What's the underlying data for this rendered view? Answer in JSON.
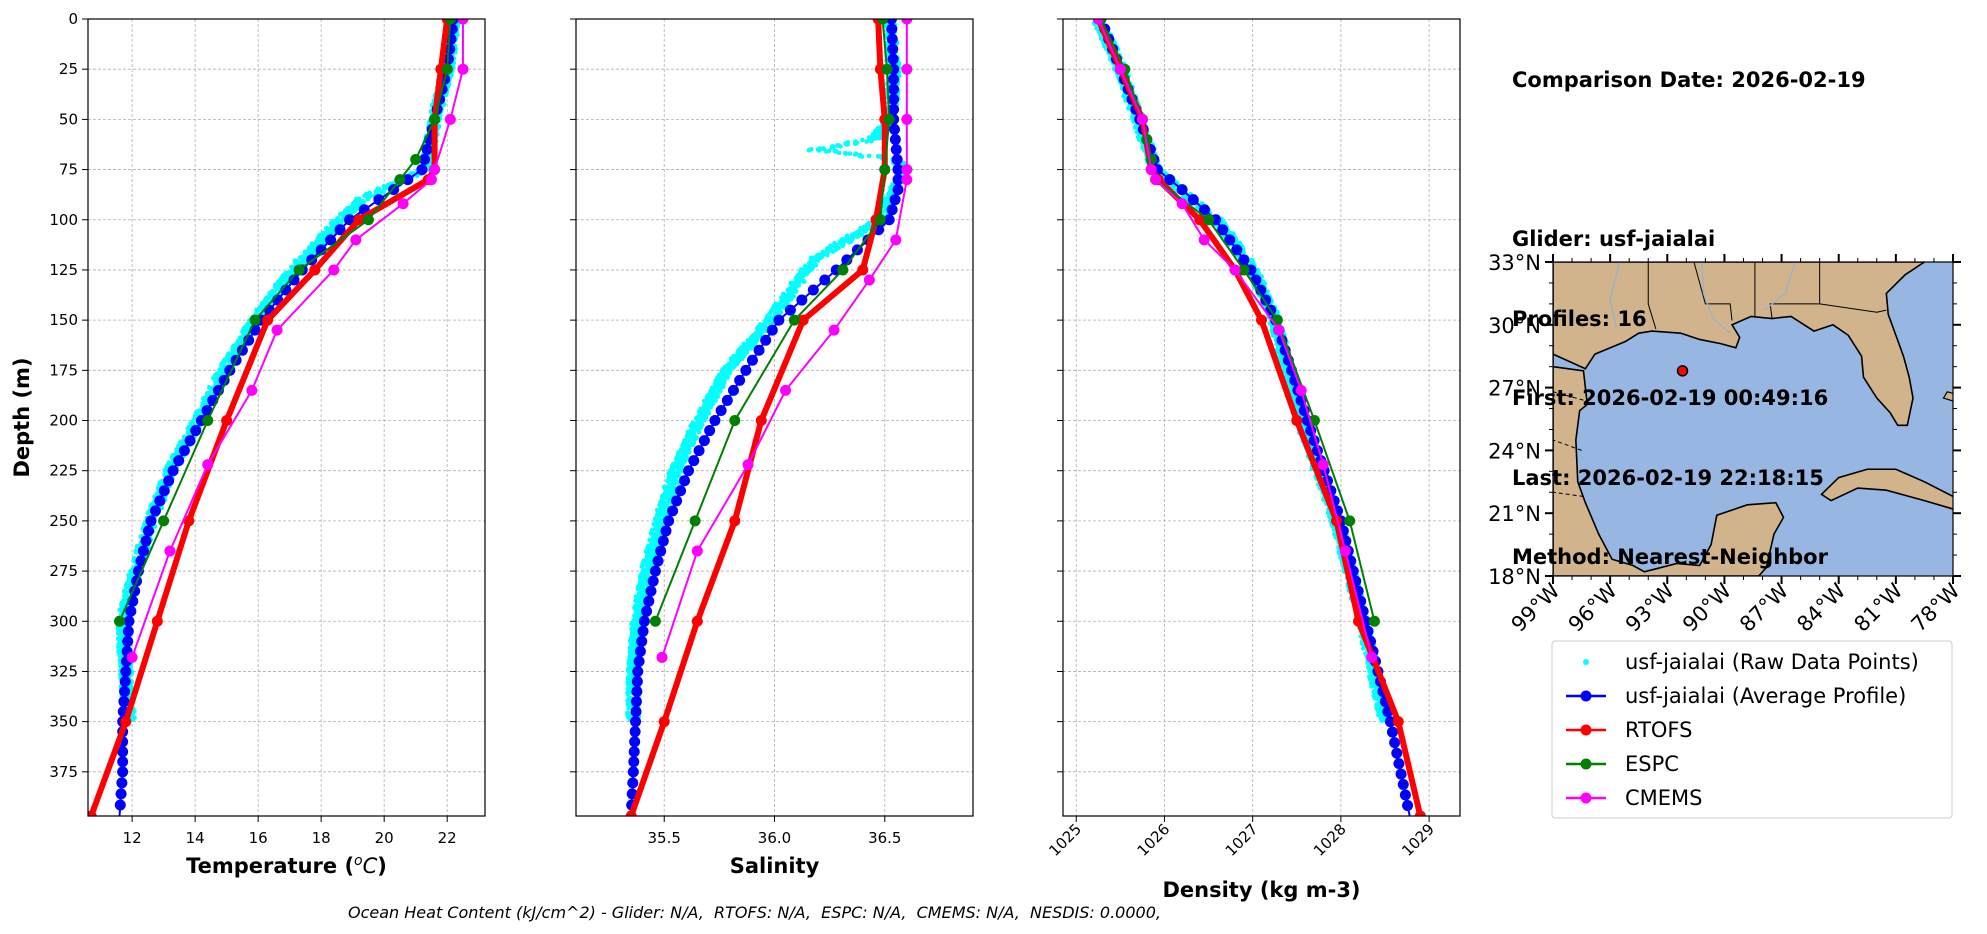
{
  "info": {
    "comparison_date": "Comparison Date: 2026-02-19",
    "glider": "Glider: usf-jaialai",
    "profiles": "Profiles: 16",
    "first": "First: 2026-02-19 00:49:16",
    "last": "Last: 2026-02-19 22:18:15",
    "method": "Method: Nearest-Neighbor"
  },
  "footer": "Ocean Heat Content (kJ/cm^2) - Glider: N/A,  RTOFS: N/A,  ESPC: N/A,  CMEMS: N/A,  NESDIS: 0.0000,",
  "legend": [
    {
      "label": "usf-jaialai (Raw Data Points)",
      "color": "#00ffff",
      "kind": "dot"
    },
    {
      "label": "usf-jaialai (Average Profile)",
      "color": "#0000ff",
      "kind": "line"
    },
    {
      "label": "RTOFS",
      "color": "#ff0000",
      "kind": "line"
    },
    {
      "label": "ESPC",
      "color": "#008000",
      "kind": "line"
    },
    {
      "label": "CMEMS",
      "color": "#ff00ff",
      "kind": "line"
    }
  ],
  "map": {
    "lat_ticks": [
      "33°N",
      "30°N",
      "27°N",
      "24°N",
      "21°N",
      "18°N"
    ],
    "lon_ticks": [
      "99°W",
      "96°W",
      "93°W",
      "90°W",
      "87°W",
      "84°W",
      "81°W",
      "78°W"
    ],
    "extent": {
      "lon": [
        -99,
        -78
      ],
      "lat": [
        18,
        33
      ]
    },
    "glider_location": {
      "lon": -92.2,
      "lat": 27.8
    },
    "land_color": "#d2b48c",
    "ocean_color": "#97b6e1"
  },
  "chart_data": [
    {
      "type": "line",
      "xlabel": "Temperature ($^o$C)",
      "ylabel": "Depth (m)",
      "xlim": [
        10.6,
        23.2
      ],
      "ylim": [
        397,
        0
      ],
      "xticks": [
        12,
        14,
        16,
        18,
        20,
        22
      ],
      "yticks": [
        0,
        25,
        50,
        75,
        100,
        125,
        150,
        175,
        200,
        225,
        250,
        275,
        300,
        325,
        350,
        375
      ],
      "grid": true,
      "series": [
        {
          "name": "usf-jaialai (Raw Data Points)",
          "color": "#00ffff",
          "depth": [
            0,
            25,
            50,
            75,
            90,
            100,
            125,
            150,
            175,
            200,
            225,
            250,
            275,
            300,
            325,
            350
          ],
          "x": [
            22.2,
            22.0,
            21.6,
            21.3,
            19.3,
            18.6,
            17.1,
            15.9,
            14.9,
            14.1,
            13.2,
            12.6,
            12.1,
            11.7,
            11.8,
            11.9
          ]
        },
        {
          "name": "usf-jaialai (Average Profile)",
          "color": "#0000ff",
          "depth": [
            0,
            25,
            50,
            75,
            85,
            100,
            125,
            150,
            175,
            200,
            225,
            250,
            275,
            300,
            325,
            350,
            375,
            397
          ],
          "x": [
            22.2,
            22.0,
            21.6,
            21.2,
            20.3,
            18.9,
            17.4,
            16.1,
            15.1,
            14.2,
            13.3,
            12.6,
            12.2,
            11.9,
            11.8,
            11.7,
            11.7,
            11.6
          ]
        },
        {
          "name": "RTOFS",
          "color": "#ff0000",
          "depth": [
            0,
            25,
            50,
            75,
            80,
            100,
            125,
            150,
            200,
            250,
            300,
            350,
            397
          ],
          "x": [
            22.0,
            21.8,
            21.6,
            21.6,
            21.4,
            19.2,
            17.8,
            16.3,
            15.0,
            13.8,
            12.8,
            11.8,
            10.7
          ]
        },
        {
          "name": "ESPC",
          "color": "#008000",
          "depth": [
            0,
            25,
            50,
            70,
            80,
            100,
            125,
            150,
            200,
            250,
            300
          ],
          "x": [
            22.1,
            22.0,
            21.6,
            21.0,
            20.5,
            19.5,
            17.3,
            15.9,
            14.4,
            13.0,
            11.6
          ]
        },
        {
          "name": "CMEMS",
          "color": "#ff00ff",
          "depth": [
            0,
            25,
            50,
            75,
            80,
            92,
            110,
            125,
            155,
            185,
            222,
            265,
            318
          ],
          "x": [
            22.5,
            22.5,
            22.1,
            21.6,
            21.5,
            20.6,
            19.1,
            18.4,
            16.6,
            15.8,
            14.4,
            13.2,
            12.0
          ]
        }
      ]
    },
    {
      "type": "line",
      "xlabel": "Salinity",
      "ylim": [
        397,
        0
      ],
      "xlim": [
        35.1,
        36.9
      ],
      "xticks": [
        35.5,
        36.0,
        36.5
      ],
      "xticklabels": [
        "35.5",
        "36.0",
        "36.5"
      ],
      "grid": true,
      "series": [
        {
          "name": "usf-jaialai (Raw Data Points)",
          "color": "#00ffff",
          "depth": [
            0,
            25,
            50,
            60,
            65,
            70,
            75,
            100,
            120,
            150,
            175,
            200,
            225,
            250,
            275,
            300,
            325,
            350
          ],
          "x": [
            36.52,
            36.54,
            36.53,
            36.45,
            36.18,
            36.55,
            36.59,
            36.48,
            36.18,
            35.98,
            35.78,
            35.66,
            35.55,
            35.48,
            35.42,
            35.38,
            35.36,
            35.36
          ]
        },
        {
          "name": "usf-jaialai (Average Profile)",
          "color": "#0000ff",
          "depth": [
            0,
            25,
            50,
            75,
            85,
            100,
            125,
            150,
            175,
            200,
            225,
            250,
            275,
            300,
            325,
            350,
            375,
            397
          ],
          "x": [
            36.53,
            36.54,
            36.54,
            36.56,
            36.56,
            36.52,
            36.28,
            36.02,
            35.87,
            35.73,
            35.61,
            35.52,
            35.46,
            35.41,
            35.38,
            35.37,
            35.36,
            35.35
          ]
        },
        {
          "name": "RTOFS",
          "color": "#ff0000",
          "depth": [
            0,
            25,
            50,
            75,
            100,
            125,
            150,
            200,
            250,
            300,
            350,
            397
          ],
          "x": [
            36.47,
            36.48,
            36.5,
            36.5,
            36.46,
            36.4,
            36.13,
            35.94,
            35.82,
            35.65,
            35.5,
            35.35
          ]
        },
        {
          "name": "ESPC",
          "color": "#008000",
          "depth": [
            0,
            25,
            50,
            75,
            100,
            125,
            150,
            200,
            250,
            300
          ],
          "x": [
            36.49,
            36.51,
            36.52,
            36.5,
            36.48,
            36.31,
            36.09,
            35.82,
            35.64,
            35.46
          ]
        },
        {
          "name": "CMEMS",
          "color": "#ff00ff",
          "depth": [
            0,
            25,
            50,
            75,
            80,
            110,
            130,
            155,
            185,
            222,
            265,
            318
          ],
          "x": [
            36.6,
            36.6,
            36.6,
            36.6,
            36.6,
            36.55,
            36.43,
            36.27,
            36.05,
            35.88,
            35.65,
            35.49
          ]
        }
      ]
    },
    {
      "type": "line",
      "xlabel": "Density (kg m-3)",
      "ylim": [
        397,
        0
      ],
      "xlim": [
        1024.85,
        1029.35
      ],
      "xticks": [
        1025,
        1026,
        1027,
        1028,
        1029
      ],
      "xticklabels": [
        "1025",
        "1026",
        "1027",
        "1028",
        "1029"
      ],
      "grid": true,
      "series": [
        {
          "name": "usf-jaialai (Raw Data Points)",
          "color": "#00ffff",
          "depth": [
            0,
            25,
            50,
            75,
            90,
            100,
            125,
            150,
            200,
            250,
            300,
            350
          ],
          "x": [
            1025.25,
            1025.5,
            1025.7,
            1025.9,
            1026.3,
            1026.6,
            1027.0,
            1027.25,
            1027.55,
            1027.95,
            1028.25,
            1028.5
          ]
        },
        {
          "name": "usf-jaialai (Average Profile)",
          "color": "#0000ff",
          "depth": [
            0,
            25,
            50,
            75,
            85,
            100,
            125,
            150,
            200,
            250,
            300,
            350,
            397
          ],
          "x": [
            1025.28,
            1025.5,
            1025.72,
            1025.92,
            1026.2,
            1026.58,
            1026.98,
            1027.26,
            1027.62,
            1028.0,
            1028.28,
            1028.56,
            1028.78
          ]
        },
        {
          "name": "RTOFS",
          "color": "#ff0000",
          "depth": [
            0,
            25,
            50,
            75,
            80,
            100,
            125,
            150,
            200,
            250,
            300,
            350,
            397
          ],
          "x": [
            1025.25,
            1025.5,
            1025.75,
            1025.85,
            1025.93,
            1026.4,
            1026.8,
            1027.1,
            1027.5,
            1027.95,
            1028.2,
            1028.65,
            1028.9
          ]
        },
        {
          "name": "ESPC",
          "color": "#008000",
          "depth": [
            0,
            25,
            50,
            60,
            70,
            80,
            100,
            125,
            150,
            200,
            250,
            300
          ],
          "x": [
            1025.28,
            1025.55,
            1025.75,
            1025.8,
            1025.85,
            1025.9,
            1026.5,
            1026.9,
            1027.28,
            1027.7,
            1028.1,
            1028.38
          ]
        },
        {
          "name": "CMEMS",
          "color": "#ff00ff",
          "depth": [
            0,
            25,
            50,
            75,
            80,
            92,
            110,
            125,
            155,
            185,
            222,
            265,
            318
          ],
          "x": [
            1025.25,
            1025.5,
            1025.75,
            1025.85,
            1025.9,
            1026.2,
            1026.45,
            1026.8,
            1027.3,
            1027.55,
            1027.8,
            1028.05,
            1028.35
          ]
        }
      ]
    }
  ]
}
